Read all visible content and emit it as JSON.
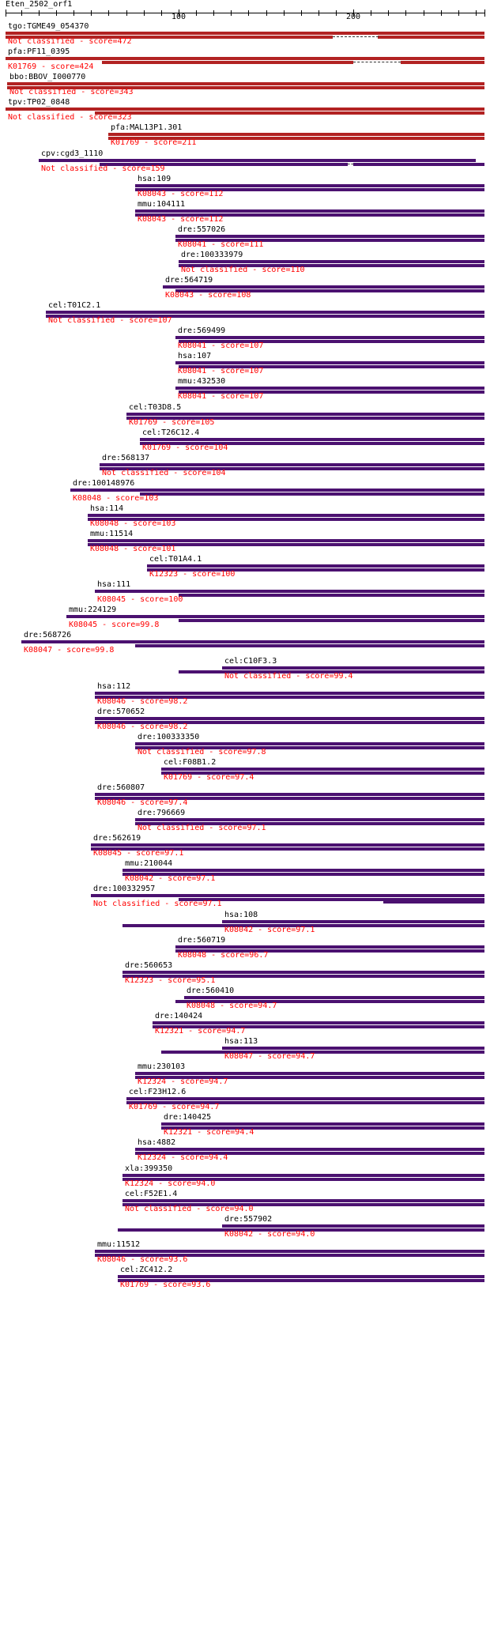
{
  "query": {
    "title": "Eten_2502_orf1",
    "axis_ticks": [
      {
        "label": "100",
        "value": 100
      },
      {
        "label": "200",
        "value": 200
      }
    ],
    "scale_min": 1,
    "scale_max": 275
  },
  "colors": {
    "red_bar": "#b22222",
    "purple_bar": "#4b1170",
    "classification_text": "#ff0000",
    "gene_text": "#000000"
  },
  "hits": [
    {
      "gene": "tgo:TGME49_054370",
      "classification": "Not classified - score=472",
      "color": "red",
      "segments": [
        [
          1,
          275
        ]
      ],
      "segments2": [
        [
          1,
          188
        ],
        [
          214,
          275
        ]
      ]
    },
    {
      "gene": "pfa:PF11_0395",
      "classification": "K01769 - score=424",
      "color": "red",
      "segments": [
        [
          1,
          275
        ]
      ],
      "segments2": [
        [
          56,
          200
        ],
        [
          227,
          275
        ]
      ]
    },
    {
      "gene": "bbo:BBOV_I000770",
      "classification": "Not classified - score=343",
      "color": "red",
      "segments": [
        [
          2,
          275
        ]
      ],
      "segments2": [
        [
          2,
          275
        ]
      ]
    },
    {
      "gene": "tpv:TP02_0848",
      "classification": "Not classified - score=323",
      "color": "red",
      "segments": [
        [
          1,
          275
        ]
      ],
      "segments2": [
        [
          52,
          275
        ]
      ]
    },
    {
      "gene": "pfa:MAL13P1.301",
      "classification": "K01769 - score=211",
      "color": "red",
      "segments": [
        [
          60,
          275
        ]
      ],
      "segments2": [
        [
          60,
          275
        ]
      ]
    },
    {
      "gene": "cpv:cgd3_1110",
      "classification": "Not classified - score=159",
      "color": "purple",
      "segments": [
        [
          20,
          270
        ]
      ],
      "segments2": [
        [
          55,
          197
        ],
        [
          200,
          275
        ]
      ]
    },
    {
      "gene": "hsa:109",
      "classification": "K08043 - score=112",
      "color": "purple",
      "segments": [
        [
          75,
          275
        ]
      ],
      "segments2": [
        [
          75,
          275
        ]
      ]
    },
    {
      "gene": "mmu:104111",
      "classification": "K08043 - score=112",
      "color": "purple",
      "segments": [
        [
          75,
          275
        ]
      ],
      "segments2": [
        [
          75,
          275
        ]
      ]
    },
    {
      "gene": "dre:557026",
      "classification": "K08041 - score=111",
      "color": "purple",
      "segments": [
        [
          98,
          275
        ]
      ],
      "segments2": [
        [
          98,
          275
        ]
      ]
    },
    {
      "gene": "dre:100333979",
      "classification": "Not classified - score=110",
      "color": "purple",
      "segments": [
        [
          100,
          275
        ]
      ],
      "segments2": [
        [
          100,
          275
        ]
      ]
    },
    {
      "gene": "dre:564719",
      "classification": "K08043 - score=108",
      "color": "purple",
      "segments": [
        [
          91,
          275
        ]
      ],
      "segments2": [
        [
          98,
          275
        ]
      ]
    },
    {
      "gene": "cel:T01C2.1",
      "classification": "Not classified - score=107",
      "color": "purple",
      "segments": [
        [
          24,
          275
        ]
      ],
      "segments2": [
        [
          24,
          275
        ]
      ]
    },
    {
      "gene": "dre:569499",
      "classification": "K08041 - score=107",
      "color": "purple",
      "segments": [
        [
          98,
          275
        ]
      ],
      "segments2": [
        [
          100,
          275
        ]
      ]
    },
    {
      "gene": "hsa:107",
      "classification": "K08041 - score=107",
      "color": "purple",
      "segments": [
        [
          98,
          275
        ]
      ],
      "segments2": [
        [
          100,
          275
        ]
      ]
    },
    {
      "gene": "mmu:432530",
      "classification": "K08041 - score=107",
      "color": "purple",
      "segments": [
        [
          98,
          275
        ]
      ],
      "segments2": [
        [
          100,
          275
        ]
      ]
    },
    {
      "gene": "cel:T03D8.5",
      "classification": "K01769 - score=105",
      "color": "purple",
      "segments": [
        [
          70,
          275
        ]
      ],
      "segments2": [
        [
          70,
          275
        ]
      ]
    },
    {
      "gene": "cel:T26C12.4",
      "classification": "K01769 - score=104",
      "color": "purple",
      "segments": [
        [
          78,
          275
        ]
      ],
      "segments2": [
        [
          78,
          275
        ]
      ]
    },
    {
      "gene": "dre:568137",
      "classification": "Not classified - score=104",
      "color": "purple",
      "segments": [
        [
          55,
          275
        ]
      ],
      "segments2": [
        [
          55,
          275
        ]
      ]
    },
    {
      "gene": "dre:100148976",
      "classification": "K08048 - score=103",
      "color": "purple",
      "segments": [
        [
          38,
          275
        ]
      ],
      "segments2": [
        [
          78,
          275
        ]
      ]
    },
    {
      "gene": "hsa:114",
      "classification": "K08048 - score=103",
      "color": "purple",
      "segments": [
        [
          48,
          275
        ]
      ],
      "segments2": [
        [
          48,
          275
        ]
      ]
    },
    {
      "gene": "mmu:11514",
      "classification": "K08048 - score=101",
      "color": "purple",
      "segments": [
        [
          48,
          275
        ]
      ],
      "segments2": [
        [
          48,
          275
        ]
      ]
    },
    {
      "gene": "cel:T01A4.1",
      "classification": "K12323 - score=100",
      "color": "purple",
      "segments": [
        [
          82,
          275
        ]
      ],
      "segments2": [
        [
          82,
          275
        ]
      ]
    },
    {
      "gene": "hsa:111",
      "classification": "K08045 - score=100",
      "color": "purple",
      "segments": [
        [
          52,
          275
        ]
      ],
      "segments2": [
        [
          100,
          275
        ]
      ]
    },
    {
      "gene": "mmu:224129",
      "classification": "K08045 - score=99.8",
      "color": "purple",
      "segments": [
        [
          36,
          275
        ]
      ],
      "segments2": [
        [
          100,
          275
        ]
      ]
    },
    {
      "gene": "dre:568726",
      "classification": "K08047 - score=99.8",
      "color": "purple",
      "segments": [
        [
          10,
          275
        ]
      ],
      "segments2": [
        [
          75,
          275
        ]
      ]
    },
    {
      "gene": "cel:C10F3.3",
      "classification": "Not classified - score=99.4",
      "color": "purple",
      "segments": [
        [
          125,
          275
        ]
      ],
      "segments2": [
        [
          100,
          275
        ]
      ]
    },
    {
      "gene": "hsa:112",
      "classification": "K08046 - score=98.2",
      "color": "purple",
      "segments": [
        [
          52,
          275
        ]
      ],
      "segments2": [
        [
          52,
          275
        ]
      ]
    },
    {
      "gene": "dre:570652",
      "classification": "K08046 - score=98.2",
      "color": "purple",
      "segments": [
        [
          52,
          275
        ]
      ],
      "segments2": [
        [
          52,
          275
        ]
      ]
    },
    {
      "gene": "dre:100333350",
      "classification": "Not classified - score=97.8",
      "color": "purple",
      "segments": [
        [
          75,
          275
        ]
      ],
      "segments2": [
        [
          75,
          275
        ]
      ]
    },
    {
      "gene": "cel:F08B1.2",
      "classification": "K01769 - score=97.4",
      "color": "purple",
      "segments": [
        [
          90,
          275
        ]
      ],
      "segments2": [
        [
          90,
          275
        ]
      ]
    },
    {
      "gene": "dre:560807",
      "classification": "K08046 - score=97.4",
      "color": "purple",
      "segments": [
        [
          52,
          275
        ]
      ],
      "segments2": [
        [
          52,
          275
        ]
      ]
    },
    {
      "gene": "dre:796669",
      "classification": "Not classified - score=97.1",
      "color": "purple",
      "segments": [
        [
          75,
          275
        ]
      ],
      "segments2": [
        [
          75,
          275
        ]
      ]
    },
    {
      "gene": "dre:562619",
      "classification": "K08045 - score=97.1",
      "color": "purple",
      "segments": [
        [
          50,
          275
        ]
      ],
      "segments2": [
        [
          50,
          275
        ]
      ]
    },
    {
      "gene": "mmu:210044",
      "classification": "K08042 - score=97.1",
      "color": "purple",
      "segments": [
        [
          68,
          275
        ]
      ],
      "segments2": [
        [
          68,
          275
        ]
      ]
    },
    {
      "gene": "dre:100332957",
      "classification": "Not classified - score=97.1",
      "color": "purple",
      "segments": [
        [
          50,
          275
        ]
      ],
      "segments2": [
        [
          100,
          275
        ]
      ],
      "segments3": [
        [
          217,
          275
        ]
      ]
    },
    {
      "gene": "hsa:108",
      "classification": "K08042 - score=97.1",
      "color": "purple",
      "segments": [
        [
          125,
          275
        ]
      ],
      "segments2": [
        [
          68,
          275
        ]
      ]
    },
    {
      "gene": "dre:560719",
      "classification": "K08048 - score=96.7",
      "color": "purple",
      "segments": [
        [
          98,
          275
        ]
      ],
      "segments2": [
        [
          98,
          275
        ]
      ]
    },
    {
      "gene": "dre:560653",
      "classification": "K12323 - score=95.1",
      "color": "purple",
      "segments": [
        [
          68,
          275
        ]
      ],
      "segments2": [
        [
          68,
          275
        ]
      ]
    },
    {
      "gene": "dre:560410",
      "classification": "K08048 - score=94.7",
      "color": "purple",
      "segments": [
        [
          103,
          275
        ]
      ],
      "segments2": [
        [
          98,
          275
        ]
      ]
    },
    {
      "gene": "dre:140424",
      "classification": "K12321 - score=94.7",
      "color": "purple",
      "segments": [
        [
          85,
          275
        ]
      ],
      "segments2": [
        [
          85,
          275
        ]
      ]
    },
    {
      "gene": "hsa:113",
      "classification": "K08047 - score=94.7",
      "color": "purple",
      "segments": [
        [
          125,
          275
        ]
      ],
      "segments2": [
        [
          90,
          275
        ]
      ]
    },
    {
      "gene": "mmu:230103",
      "classification": "K12324 - score=94.7",
      "color": "purple",
      "segments": [
        [
          75,
          275
        ]
      ],
      "segments2": [
        [
          75,
          275
        ]
      ]
    },
    {
      "gene": "cel:F23H12.6",
      "classification": "K01769 - score=94.7",
      "color": "purple",
      "segments": [
        [
          70,
          275
        ]
      ],
      "segments2": [
        [
          70,
          275
        ]
      ]
    },
    {
      "gene": "dre:140425",
      "classification": "K12321 - score=94.4",
      "color": "purple",
      "segments": [
        [
          90,
          275
        ]
      ],
      "segments2": [
        [
          90,
          275
        ]
      ]
    },
    {
      "gene": "hsa:4882",
      "classification": "K12324 - score=94.4",
      "color": "purple",
      "segments": [
        [
          75,
          275
        ]
      ],
      "segments2": [
        [
          75,
          275
        ]
      ]
    },
    {
      "gene": "xla:399350",
      "classification": "K12324 - score=94.0",
      "color": "purple",
      "segments": [
        [
          68,
          275
        ]
      ],
      "segments2": [
        [
          68,
          275
        ]
      ]
    },
    {
      "gene": "cel:F52E1.4",
      "classification": "Not classified - score=94.0",
      "color": "purple",
      "segments": [
        [
          68,
          275
        ]
      ],
      "segments2": [
        [
          68,
          275
        ]
      ]
    },
    {
      "gene": "dre:557902",
      "classification": "K08042 - score=94.0",
      "color": "purple",
      "segments": [
        [
          125,
          275
        ]
      ],
      "segments2": [
        [
          65,
          275
        ]
      ]
    },
    {
      "gene": "mmu:11512",
      "classification": "K08046 - score=93.6",
      "color": "purple",
      "segments": [
        [
          52,
          275
        ]
      ],
      "segments2": [
        [
          52,
          275
        ]
      ]
    },
    {
      "gene": "cel:ZC412.2",
      "classification": "K01769 - score=93.6",
      "color": "purple",
      "segments": [
        [
          65,
          275
        ]
      ],
      "segments2": [
        [
          65,
          275
        ]
      ]
    }
  ]
}
